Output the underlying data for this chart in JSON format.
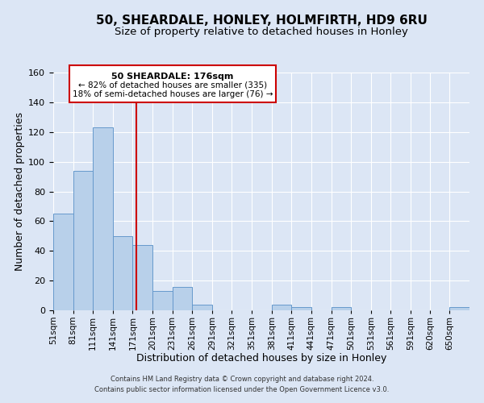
{
  "title": "50, SHEARDALE, HONLEY, HOLMFIRTH, HD9 6RU",
  "subtitle": "Size of property relative to detached houses in Honley",
  "xlabel": "Distribution of detached houses by size in Honley",
  "ylabel": "Number of detached properties",
  "footer_line1": "Contains HM Land Registry data © Crown copyright and database right 2024.",
  "footer_line2": "Contains public sector information licensed under the Open Government Licence v3.0.",
  "bin_labels": [
    "51sqm",
    "81sqm",
    "111sqm",
    "141sqm",
    "171sqm",
    "201sqm",
    "231sqm",
    "261sqm",
    "291sqm",
    "321sqm",
    "351sqm",
    "381sqm",
    "411sqm",
    "441sqm",
    "471sqm",
    "501sqm",
    "531sqm",
    "561sqm",
    "591sqm",
    "620sqm",
    "650sqm"
  ],
  "bin_starts": [
    51,
    81,
    111,
    141,
    171,
    201,
    231,
    261,
    291,
    321,
    351,
    381,
    411,
    441,
    471,
    501,
    531,
    561,
    591,
    620,
    650
  ],
  "bin_width": 30,
  "bar_values": [
    65,
    94,
    123,
    50,
    44,
    13,
    16,
    4,
    0,
    0,
    0,
    4,
    2,
    0,
    2,
    0,
    0,
    0,
    0,
    0,
    2
  ],
  "bar_color": "#b8d0ea",
  "bar_edge_color": "#6699cc",
  "property_size": 176,
  "red_color": "#cc0000",
  "annotation_line1": "50 SHEARDALE: 176sqm",
  "annotation_line2": "← 82% of detached houses are smaller (335)",
  "annotation_line3": "18% of semi-detached houses are larger (76) →",
  "ylim": [
    0,
    160
  ],
  "yticks": [
    0,
    20,
    40,
    60,
    80,
    100,
    120,
    140,
    160
  ],
  "background_color": "#dce6f5",
  "grid_color": "#ffffff",
  "title_fontsize": 11,
  "subtitle_fontsize": 9.5,
  "axis_label_fontsize": 9,
  "tick_fontsize": 8,
  "footer_fontsize": 6
}
